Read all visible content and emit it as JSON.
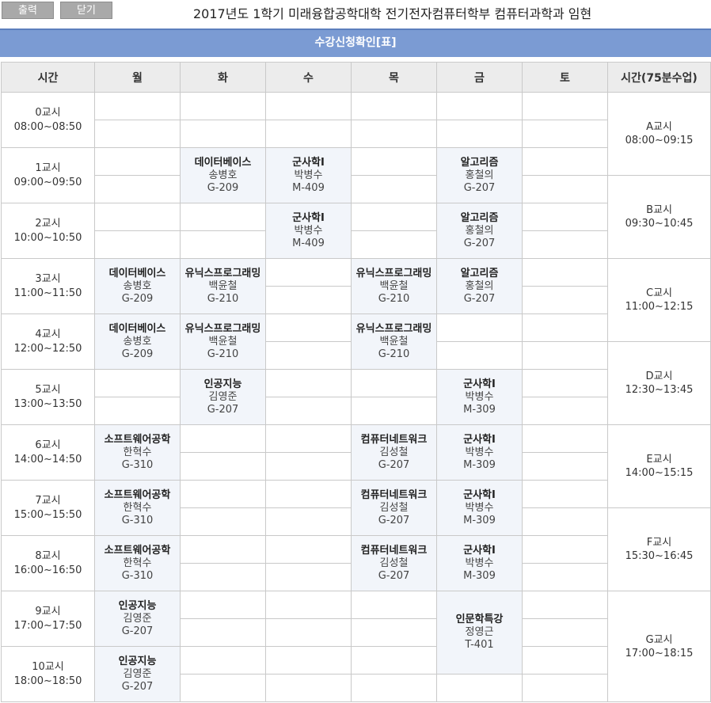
{
  "toolbar": {
    "print_label": "출력",
    "close_label": "닫기"
  },
  "page_title": "2017년도 1학기 미래융합공학대학 전기전자컴퓨터학부 컴퓨터과학과 임현",
  "banner_title": "수강신청확인[표]",
  "headers": [
    "시간",
    "월",
    "화",
    "수",
    "목",
    "금",
    "토",
    "시간(75분수업)"
  ],
  "rows": [
    {
      "label": "0교시",
      "time": "08:00~08:50"
    },
    {
      "label": "1교시",
      "time": "09:00~09:50"
    },
    {
      "label": "2교시",
      "time": "10:00~10:50"
    },
    {
      "label": "3교시",
      "time": "11:00~11:50"
    },
    {
      "label": "4교시",
      "time": "12:00~12:50"
    },
    {
      "label": "5교시",
      "time": "13:00~13:50"
    },
    {
      "label": "6교시",
      "time": "14:00~14:50"
    },
    {
      "label": "7교시",
      "time": "15:00~15:50"
    },
    {
      "label": "8교시",
      "time": "16:00~16:50"
    },
    {
      "label": "9교시",
      "time": "17:00~17:50"
    },
    {
      "label": "10교시",
      "time": "18:00~18:50"
    }
  ],
  "periods75": [
    {
      "label": "A교시",
      "time": "08:00~09:15",
      "start": 0,
      "span": 3
    },
    {
      "label": "B교시",
      "time": "09:30~10:45",
      "start": 3,
      "span": 3
    },
    {
      "label": "C교시",
      "time": "11:00~12:15",
      "start": 6,
      "span": 3
    },
    {
      "label": "D교시",
      "time": "12:30~13:45",
      "start": 9,
      "span": 3
    },
    {
      "label": "E교시",
      "time": "14:00~15:15",
      "start": 12,
      "span": 3
    },
    {
      "label": "F교시",
      "time": "15:30~16:45",
      "start": 15,
      "span": 3
    },
    {
      "label": "G교시",
      "time": "17:00~18:15",
      "start": 18,
      "span": 4
    }
  ],
  "classes": [
    {
      "day": 1,
      "start": 2,
      "span": 2,
      "name": "데이터베이스",
      "prof": "송병호",
      "room": "G-209"
    },
    {
      "day": 2,
      "start": 2,
      "span": 2,
      "name": "군사학I",
      "prof": "박병수",
      "room": "M-409"
    },
    {
      "day": 4,
      "start": 2,
      "span": 2,
      "name": "알고리즘",
      "prof": "홍철의",
      "room": "G-207"
    },
    {
      "day": 2,
      "start": 4,
      "span": 2,
      "name": "군사학I",
      "prof": "박병수",
      "room": "M-409"
    },
    {
      "day": 4,
      "start": 4,
      "span": 2,
      "name": "알고리즘",
      "prof": "홍철의",
      "room": "G-207"
    },
    {
      "day": 0,
      "start": 6,
      "span": 2,
      "name": "데이터베이스",
      "prof": "송병호",
      "room": "G-209"
    },
    {
      "day": 1,
      "start": 6,
      "span": 2,
      "name": "유닉스프로그래밍",
      "prof": "백윤철",
      "room": "G-210"
    },
    {
      "day": 3,
      "start": 6,
      "span": 2,
      "name": "유닉스프로그래밍",
      "prof": "백윤철",
      "room": "G-210"
    },
    {
      "day": 4,
      "start": 6,
      "span": 2,
      "name": "알고리즘",
      "prof": "홍철의",
      "room": "G-207"
    },
    {
      "day": 0,
      "start": 8,
      "span": 2,
      "name": "데이터베이스",
      "prof": "송병호",
      "room": "G-209"
    },
    {
      "day": 1,
      "start": 8,
      "span": 2,
      "name": "유닉스프로그래밍",
      "prof": "백윤철",
      "room": "G-210"
    },
    {
      "day": 3,
      "start": 8,
      "span": 2,
      "name": "유닉스프로그래밍",
      "prof": "백윤철",
      "room": "G-210"
    },
    {
      "day": 1,
      "start": 10,
      "span": 2,
      "name": "인공지능",
      "prof": "김영준",
      "room": "G-207"
    },
    {
      "day": 4,
      "start": 10,
      "span": 2,
      "name": "군사학I",
      "prof": "박병수",
      "room": "M-309"
    },
    {
      "day": 0,
      "start": 12,
      "span": 2,
      "name": "소프트웨어공학",
      "prof": "한혁수",
      "room": "G-310"
    },
    {
      "day": 3,
      "start": 12,
      "span": 2,
      "name": "컴퓨터네트워크",
      "prof": "김성철",
      "room": "G-207"
    },
    {
      "day": 4,
      "start": 12,
      "span": 2,
      "name": "군사학I",
      "prof": "박병수",
      "room": "M-309"
    },
    {
      "day": 0,
      "start": 14,
      "span": 2,
      "name": "소프트웨어공학",
      "prof": "한혁수",
      "room": "G-310"
    },
    {
      "day": 3,
      "start": 14,
      "span": 2,
      "name": "컴퓨터네트워크",
      "prof": "김성철",
      "room": "G-207"
    },
    {
      "day": 4,
      "start": 14,
      "span": 2,
      "name": "군사학I",
      "prof": "박병수",
      "room": "M-309"
    },
    {
      "day": 0,
      "start": 16,
      "span": 2,
      "name": "소프트웨어공학",
      "prof": "한혁수",
      "room": "G-310"
    },
    {
      "day": 3,
      "start": 16,
      "span": 2,
      "name": "컴퓨터네트워크",
      "prof": "김성철",
      "room": "G-207"
    },
    {
      "day": 4,
      "start": 16,
      "span": 2,
      "name": "군사학I",
      "prof": "박병수",
      "room": "M-309"
    },
    {
      "day": 0,
      "start": 18,
      "span": 2,
      "name": "인공지능",
      "prof": "김영준",
      "room": "G-207"
    },
    {
      "day": 4,
      "start": 18,
      "span": 3,
      "name": "인문학특강",
      "prof": "정영근",
      "room": "T-401"
    },
    {
      "day": 0,
      "start": 20,
      "span": 2,
      "name": "인공지능",
      "prof": "김영준",
      "room": "G-207"
    }
  ]
}
